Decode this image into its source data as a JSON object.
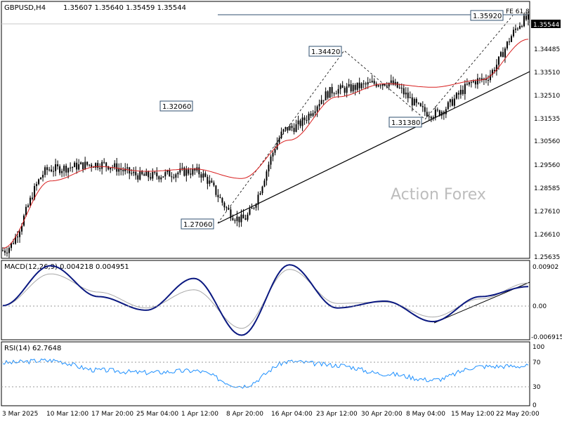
{
  "header": {
    "symbol": "GBPUSD,H4",
    "ohlc": "1.35607 1.35640 1.35459 1.35544"
  },
  "watermark": "Action Forex",
  "price_panel": {
    "y_ticks": [
      "1.34485",
      "1.33510",
      "1.32510",
      "1.31535",
      "1.30560",
      "1.29560",
      "1.28585",
      "1.27610",
      "1.26610",
      "1.25635"
    ],
    "last_price_label": "1.35544",
    "fe_label": "FE 61.8",
    "swing_labels": [
      "1.35920",
      "1.34420",
      "1.32060",
      "1.31380",
      "1.27060"
    ]
  },
  "macd_panel": {
    "title": "MACD(12,26,9) 0.004218 0.004951",
    "y_ticks": [
      "0.00902",
      "0.00",
      "-0.006915"
    ]
  },
  "rsi_panel": {
    "title": "RSI(14) 62.7648",
    "y_ticks": [
      "100",
      "70",
      "30",
      "0"
    ]
  },
  "x_ticks": [
    "3 Mar 2025",
    "10 Mar 12:00",
    "17 Mar 20:00",
    "25 Mar 04:00",
    "1 Apr 12:00",
    "8 Apr 20:00",
    "16 Apr 04:00",
    "23 Apr 12:00",
    "30 Apr 20:00",
    "8 May 04:00",
    "15 May 12:00",
    "22 May 20:00"
  ],
  "colors": {
    "candles": "#000000",
    "ma": "#d81e1e",
    "macd_line": "#0a1880",
    "signal_line": "#a8a8a8",
    "rsi_line": "#1e90ff",
    "trendline": "#000000",
    "fe_line": "#2f4f6f",
    "grid_dots": "#9a9a9a"
  },
  "chart_data": [
    {
      "type": "candlestick",
      "title": "GBPUSD,H4",
      "ylim": [
        1.25635,
        1.361
      ],
      "x": [
        "3 Mar 2025",
        "10 Mar 12:00",
        "17 Mar 20:00",
        "25 Mar 04:00",
        "1 Apr 12:00",
        "8 Apr 20:00",
        "16 Apr 04:00",
        "23 Apr 12:00",
        "30 Apr 20:00",
        "8 May 04:00",
        "15 May 12:00",
        "22 May 20:00"
      ],
      "close_anchors": [
        1.259,
        1.293,
        1.295,
        1.29,
        1.292,
        1.272,
        1.31,
        1.326,
        1.329,
        1.316,
        1.33,
        1.3554
      ],
      "moving_average_anchors": [
        1.26,
        1.288,
        1.294,
        1.292,
        1.293,
        1.289,
        1.305,
        1.323,
        1.3285,
        1.327,
        1.33,
        1.347
      ],
      "swing_points": [
        {
          "label": "1.35920",
          "value": 1.3592
        },
        {
          "label": "1.34420",
          "value": 1.3442
        },
        {
          "label": "1.32060",
          "value": 1.3206
        },
        {
          "label": "1.31380",
          "value": 1.3138
        },
        {
          "label": "1.27060",
          "value": 1.2706
        }
      ],
      "last_price": 1.35544
    },
    {
      "type": "line",
      "title": "MACD(12,26,9) 0.004218 0.004951",
      "ylim": [
        -0.0072,
        0.0095
      ],
      "series": [
        {
          "name": "MACD",
          "values": [
            0.0,
            0.0088,
            0.002,
            -0.001,
            0.006,
            -0.0065,
            0.009,
            -0.0005,
            0.001,
            -0.0035,
            0.002,
            0.0042
          ]
        },
        {
          "name": "Signal",
          "values": [
            0.0,
            0.007,
            0.003,
            -0.0005,
            0.0035,
            -0.005,
            0.008,
            0.0005,
            0.0008,
            -0.0025,
            0.0015,
            0.005
          ]
        }
      ]
    },
    {
      "type": "line",
      "title": "RSI(14) 62.7648",
      "ylim": [
        0,
        100
      ],
      "series": [
        {
          "name": "RSI",
          "values": [
            68,
            72,
            56,
            52,
            55,
            30,
            70,
            64,
            50,
            40,
            62,
            62.76
          ]
        }
      ],
      "levels": [
        70,
        30
      ]
    }
  ]
}
